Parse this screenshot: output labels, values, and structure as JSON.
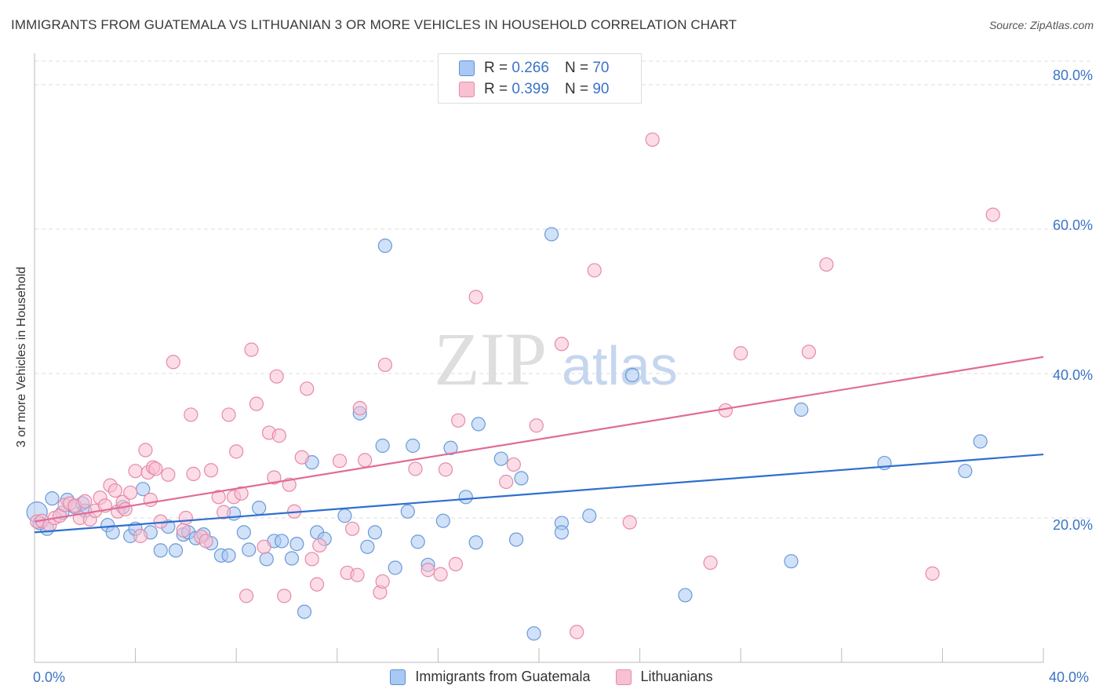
{
  "title": "IMMIGRANTS FROM GUATEMALA VS LITHUANIAN 3 OR MORE VEHICLES IN HOUSEHOLD CORRELATION CHART",
  "source": "Source: ZipAtlas.com",
  "watermark": {
    "zip": "ZIP",
    "atlas": "atlas"
  },
  "legend_top": {
    "r_label": "R =",
    "n_label": "N =",
    "rows": [
      {
        "r": "0.266",
        "n": "70",
        "color": "#a9c8f3",
        "border": "#5b8fd6"
      },
      {
        "r": "0.399",
        "n": "90",
        "color": "#f9c0d2",
        "border": "#e58aa8"
      }
    ]
  },
  "chart_data": {
    "type": "scatter",
    "title": "IMMIGRANTS FROM GUATEMALA VS LITHUANIAN 3 OR MORE VEHICLES IN HOUSEHOLD CORRELATION CHART",
    "xlabel": "",
    "ylabel": "3 or more Vehicles in Household",
    "xlim": [
      0,
      40
    ],
    "ylim": [
      0,
      85
    ],
    "x_tick_labels": [
      "0.0%",
      "40.0%"
    ],
    "y_ticks": [
      20,
      40,
      60,
      80
    ],
    "y_tick_labels": [
      "20.0%",
      "40.0%",
      "60.0%",
      "80.0%"
    ],
    "grid": true,
    "legend_position": "top-center",
    "series": [
      {
        "name": "Immigrants from Guatemala",
        "color": "#a9c8f3",
        "stroke": "#6a9ad8",
        "line_color": "#2f6fcf",
        "trend": [
          [
            0,
            18.0
          ],
          [
            40,
            28.8
          ]
        ],
        "points": [
          [
            0.1,
            20.8
          ],
          [
            0.5,
            18.5
          ],
          [
            0.7,
            22.7
          ],
          [
            1.1,
            20.7
          ],
          [
            1.3,
            22.5
          ],
          [
            1.6,
            21.5
          ],
          [
            1.9,
            22.0
          ],
          [
            2.0,
            21.0
          ],
          [
            2.9,
            19.0
          ],
          [
            3.1,
            18.0
          ],
          [
            3.5,
            21.5
          ],
          [
            3.8,
            17.5
          ],
          [
            4.0,
            18.5
          ],
          [
            4.3,
            24.0
          ],
          [
            4.6,
            18.0
          ],
          [
            5.0,
            15.5
          ],
          [
            5.3,
            18.8
          ],
          [
            5.6,
            15.5
          ],
          [
            5.9,
            17.7
          ],
          [
            6.1,
            18.0
          ],
          [
            6.4,
            17.2
          ],
          [
            6.7,
            17.7
          ],
          [
            7.0,
            16.5
          ],
          [
            7.4,
            14.8
          ],
          [
            7.7,
            14.8
          ],
          [
            7.9,
            20.6
          ],
          [
            8.3,
            18.0
          ],
          [
            8.5,
            15.6
          ],
          [
            8.9,
            21.4
          ],
          [
            9.2,
            14.3
          ],
          [
            9.5,
            16.8
          ],
          [
            9.8,
            16.8
          ],
          [
            10.2,
            14.4
          ],
          [
            10.4,
            16.4
          ],
          [
            10.7,
            7.0
          ],
          [
            11.0,
            27.7
          ],
          [
            11.2,
            18.0
          ],
          [
            11.5,
            17.1
          ],
          [
            12.3,
            20.3
          ],
          [
            12.9,
            34.5
          ],
          [
            13.2,
            16.0
          ],
          [
            13.5,
            18.0
          ],
          [
            13.8,
            30.0
          ],
          [
            13.9,
            57.7
          ],
          [
            14.3,
            13.1
          ],
          [
            14.8,
            20.9
          ],
          [
            15.0,
            30.0
          ],
          [
            15.2,
            16.7
          ],
          [
            15.6,
            13.5
          ],
          [
            16.2,
            19.6
          ],
          [
            16.5,
            29.7
          ],
          [
            17.1,
            22.9
          ],
          [
            17.6,
            33.0
          ],
          [
            17.5,
            16.6
          ],
          [
            18.5,
            28.2
          ],
          [
            19.1,
            17.0
          ],
          [
            19.3,
            25.5
          ],
          [
            19.8,
            4.0
          ],
          [
            20.5,
            59.3
          ],
          [
            20.9,
            19.3
          ],
          [
            20.9,
            18.0
          ],
          [
            22.0,
            20.3
          ],
          [
            23.7,
            39.8
          ],
          [
            25.8,
            9.3
          ],
          [
            30.0,
            14.0
          ],
          [
            30.4,
            35.0
          ],
          [
            33.7,
            27.6
          ],
          [
            36.9,
            26.5
          ],
          [
            37.5,
            30.6
          ],
          [
            0.2,
            19.3
          ]
        ]
      },
      {
        "name": "Lithuanians",
        "color": "#f9c0d2",
        "stroke": "#e58aa8",
        "line_color": "#e06c96",
        "trend": [
          [
            0,
            19.5
          ],
          [
            40,
            42.3
          ]
        ],
        "points": [
          [
            0.1,
            19.5
          ],
          [
            0.3,
            19.6
          ],
          [
            0.6,
            19.0
          ],
          [
            0.8,
            20.0
          ],
          [
            1.0,
            20.3
          ],
          [
            1.2,
            21.8
          ],
          [
            1.4,
            22.0
          ],
          [
            1.6,
            21.7
          ],
          [
            1.8,
            20.0
          ],
          [
            2.0,
            22.3
          ],
          [
            2.2,
            19.8
          ],
          [
            2.4,
            21.0
          ],
          [
            2.6,
            22.8
          ],
          [
            2.8,
            21.7
          ],
          [
            3.0,
            24.5
          ],
          [
            3.2,
            23.8
          ],
          [
            3.3,
            20.9
          ],
          [
            3.5,
            22.2
          ],
          [
            3.6,
            21.2
          ],
          [
            3.8,
            23.5
          ],
          [
            4.0,
            26.5
          ],
          [
            4.2,
            17.5
          ],
          [
            4.4,
            29.4
          ],
          [
            4.5,
            26.3
          ],
          [
            4.6,
            22.5
          ],
          [
            4.7,
            27.0
          ],
          [
            4.8,
            26.8
          ],
          [
            5.0,
            19.5
          ],
          [
            5.3,
            26.0
          ],
          [
            5.5,
            41.6
          ],
          [
            5.9,
            18.3
          ],
          [
            6.0,
            20.0
          ],
          [
            6.2,
            34.3
          ],
          [
            6.3,
            26.1
          ],
          [
            6.6,
            17.4
          ],
          [
            6.8,
            16.8
          ],
          [
            7.0,
            26.6
          ],
          [
            7.3,
            22.9
          ],
          [
            7.5,
            20.8
          ],
          [
            7.7,
            34.3
          ],
          [
            7.9,
            22.9
          ],
          [
            8.0,
            29.2
          ],
          [
            8.2,
            23.4
          ],
          [
            8.4,
            9.2
          ],
          [
            8.6,
            43.3
          ],
          [
            8.8,
            35.8
          ],
          [
            9.1,
            16.0
          ],
          [
            9.3,
            31.8
          ],
          [
            9.5,
            25.6
          ],
          [
            9.6,
            39.6
          ],
          [
            9.7,
            31.4
          ],
          [
            9.9,
            9.2
          ],
          [
            10.1,
            24.6
          ],
          [
            10.3,
            20.9
          ],
          [
            10.6,
            28.4
          ],
          [
            10.8,
            37.9
          ],
          [
            11.0,
            14.3
          ],
          [
            11.2,
            10.8
          ],
          [
            11.3,
            16.2
          ],
          [
            12.1,
            27.9
          ],
          [
            12.4,
            12.4
          ],
          [
            12.6,
            18.5
          ],
          [
            12.8,
            12.1
          ],
          [
            12.9,
            35.2
          ],
          [
            13.1,
            28.0
          ],
          [
            13.7,
            9.7
          ],
          [
            13.8,
            11.2
          ],
          [
            13.9,
            41.2
          ],
          [
            15.1,
            26.8
          ],
          [
            15.6,
            12.8
          ],
          [
            16.1,
            12.2
          ],
          [
            16.3,
            26.7
          ],
          [
            16.7,
            13.6
          ],
          [
            16.8,
            33.5
          ],
          [
            17.5,
            50.6
          ],
          [
            18.7,
            25.0
          ],
          [
            19.0,
            27.4
          ],
          [
            19.9,
            32.8
          ],
          [
            20.9,
            44.1
          ],
          [
            21.5,
            4.2
          ],
          [
            22.2,
            54.3
          ],
          [
            23.6,
            19.4
          ],
          [
            24.5,
            72.4
          ],
          [
            26.8,
            13.8
          ],
          [
            27.4,
            34.9
          ],
          [
            28.0,
            42.8
          ],
          [
            30.7,
            43.0
          ],
          [
            31.4,
            55.1
          ],
          [
            35.6,
            12.3
          ],
          [
            38.0,
            62.0
          ]
        ]
      }
    ]
  }
}
